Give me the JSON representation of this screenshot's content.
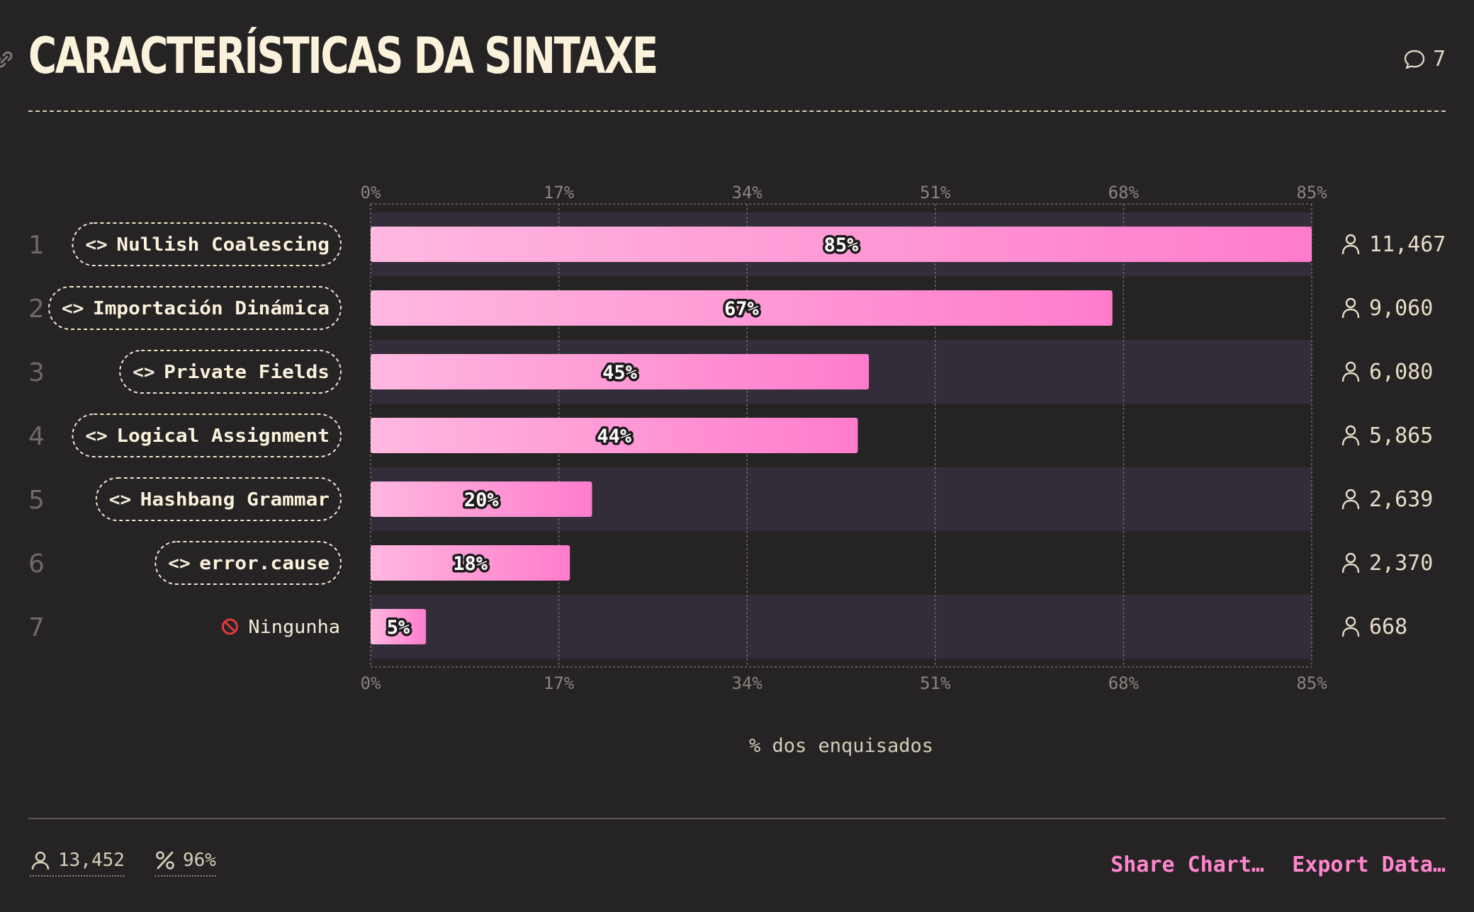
{
  "header": {
    "title": "CARACTERÍSTICAS DA SINTAXE",
    "comment_count": "7"
  },
  "chart_data": {
    "type": "bar",
    "orientation": "horizontal",
    "xlabel": "% dos enquisados",
    "xlim": [
      0,
      85
    ],
    "ticks": [
      0,
      17,
      34,
      51,
      68,
      85
    ],
    "tick_labels": [
      "0%",
      "17%",
      "34%",
      "51%",
      "68%",
      "85%"
    ],
    "categories": [
      "Nullish Coalescing",
      "Importación Dinámica",
      "Private Fields",
      "Logical Assignment",
      "Hashbang Grammar",
      "error.cause",
      "Ningunha"
    ],
    "values": [
      85,
      67,
      45,
      44,
      20,
      18,
      5
    ],
    "value_labels": [
      "85%",
      "67%",
      "45%",
      "44%",
      "20%",
      "18%",
      "5%"
    ],
    "ranks": [
      "1",
      "2",
      "3",
      "4",
      "5",
      "6",
      "7"
    ],
    "counts": [
      "11,467",
      "9,060",
      "6,080",
      "5,865",
      "2,639",
      "2,370",
      "668"
    ],
    "grid": true,
    "colors": {
      "bar_start": "#ffb8e0",
      "bar_end": "#ff7ccc",
      "band": "#332d39"
    }
  },
  "footer": {
    "respondents": "13,452",
    "completion": "96%",
    "share_label": "Share Chart…",
    "export_label": "Export Data…"
  }
}
